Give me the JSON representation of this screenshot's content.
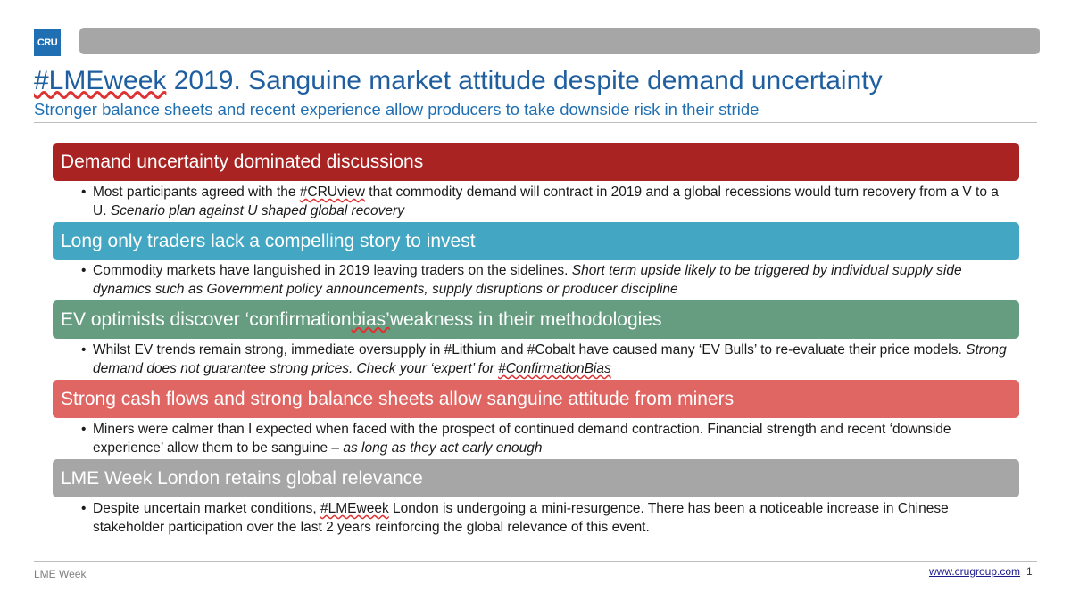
{
  "logo": {
    "text": "CRU"
  },
  "colors": {
    "title": "#1f5f9f",
    "subtitle": "#1f6fb2",
    "header1": "#a82322",
    "header2": "#43a7c4",
    "header3": "#669d80",
    "header4": "#e06663",
    "header5": "#a6a6a6"
  },
  "title": {
    "tag": "#LMEweek",
    "rest": " 2019. Sanguine market attitude despite demand uncertainty"
  },
  "subtitle": "Stronger balance sheets and recent experience allow producers to take downside risk in their stride",
  "sections": [
    {
      "heading": "Demand uncertainty dominated discussions",
      "b_a": "Most participants agreed with the ",
      "b_tag": "#CRUview",
      "b_b": " that commodity demand will contract in 2019 and a global recessions would turn recovery from a V to a U.  ",
      "b_em": "Scenario plan against U shaped global recovery"
    },
    {
      "heading": "Long only traders lack a compelling story to invest",
      "b_a": "Commodity markets have languished in 2019 leaving traders on the sidelines.  ",
      "b_em": "Short term upside likely to be triggered by individual supply side dynamics such as Government policy announcements, supply disruptions or producer discipline"
    },
    {
      "heading_a": "EV optimists discover ‘confirmation ",
      "heading_tag": "bias’",
      "heading_b": " weakness in their methodologies",
      "b_a": "Whilst EV trends remain strong, immediate oversupply in #Lithium and #Cobalt have caused many ‘EV Bulls’ to re-evaluate their price models.  ",
      "b_em": "Strong demand does not guarantee strong prices.  Check your ‘expert’ for ",
      "b_tag": "#ConfirmationBias"
    },
    {
      "heading": "Strong cash flows and strong balance sheets allow sanguine attitude from miners",
      "b_a": "Miners were calmer than I expected when faced with the prospect of continued demand contraction.  Financial strength and recent ‘downside experience’ allow them to be sanguine – ",
      "b_em": "as long as they act early enough"
    },
    {
      "heading": "LME Week London retains global relevance",
      "b_a": "Despite uncertain market conditions, ",
      "b_tag": "#LMEweek",
      "b_b": " London is undergoing a mini-resurgence. There has been a noticeable increase in Chinese stakeholder participation over the last 2 years reinforcing the global relevance of this event."
    }
  ],
  "bullet_char": "•",
  "footer": {
    "left": "LME Week",
    "link": "www.crugroup.com",
    "page": "1"
  }
}
